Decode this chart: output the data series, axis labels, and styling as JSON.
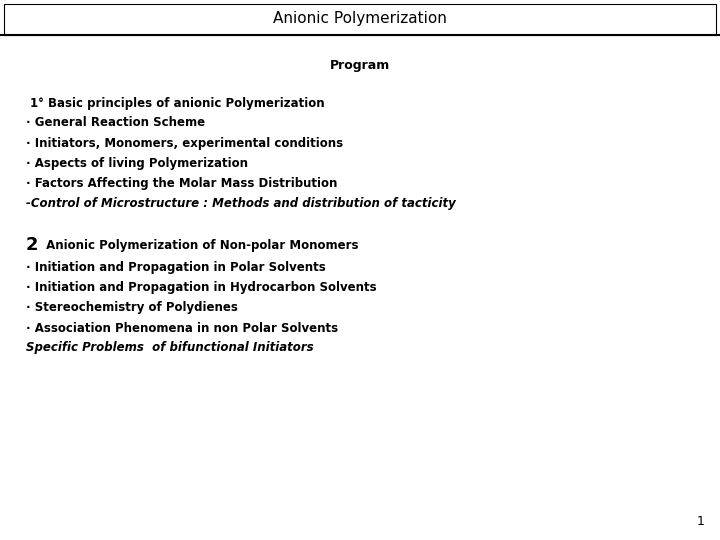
{
  "title": "Anionic Polymerization",
  "title_fontsize": 11,
  "background_color": "#ffffff",
  "border_color": "#000000",
  "text_color": "#000000",
  "program_label": "Program",
  "section1_header": "1° Basic principles of anionic Polymerization",
  "section1_items": [
    "· General Reaction Scheme",
    "· Initiators, Monomers, experimental conditions",
    "· Aspects of living Polymerization",
    "· Factors Affecting the Molar Mass Distribution",
    "-Control of Microstructure : Methods and distribution of tacticity"
  ],
  "section2_header_num": "2",
  "section2_header_text": " Anionic Polymerization of Non-polar Monomers",
  "section2_items": [
    "· Initiation and Propagation in Polar Solvents",
    "· Initiation and Propagation in Hydrocarbon Solvents",
    "· Stereochemistry of Polydienes",
    "· Association Phenomena in non Polar Solvents",
    "Specific Problems  of bifunctional Initiators"
  ],
  "page_number": "1"
}
